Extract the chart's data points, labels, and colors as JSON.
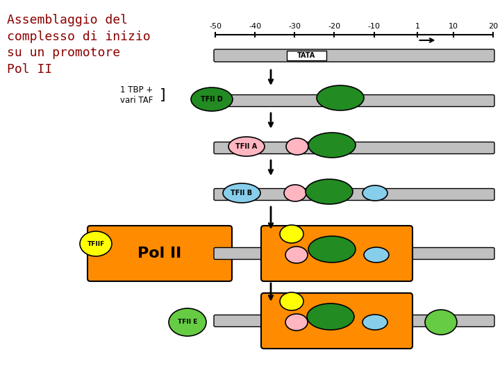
{
  "title": "Assemblaggio del\ncomplesso di inizio\nsu un promotore\nPol II",
  "title_color": "#8B0000",
  "bg_color": "#ffffff",
  "axis_ticks": [
    -50,
    -40,
    -30,
    -20,
    -10,
    1,
    10,
    20
  ],
  "dna_color": "#C0C0C0",
  "tata_box_color": "#ffffff",
  "tata_text": "TATA",
  "green_oval_color": "#228B22",
  "pink_oval_color": "#FFB6C1",
  "blue_oval_color": "#87CEEB",
  "yellow_oval_color": "#FFFF00",
  "orange_rect_color": "#FF8C00",
  "tfiid_bg": "#228B22",
  "tfia_bg": "#FFB6C1",
  "tfiib_bg": "#87CEEB",
  "tfiif_bg": "#FFFF00",
  "tfiie_bg": "#66CC44",
  "label_tfiid": "TFII D",
  "label_tfia": "TFII A",
  "label_tfiib": "TFII B",
  "label_tfiif": "TFIIF",
  "label_tfiie": "TFII E",
  "label_tbp": "1 TBP +\nvari TAF",
  "label_polii": "Pol II"
}
